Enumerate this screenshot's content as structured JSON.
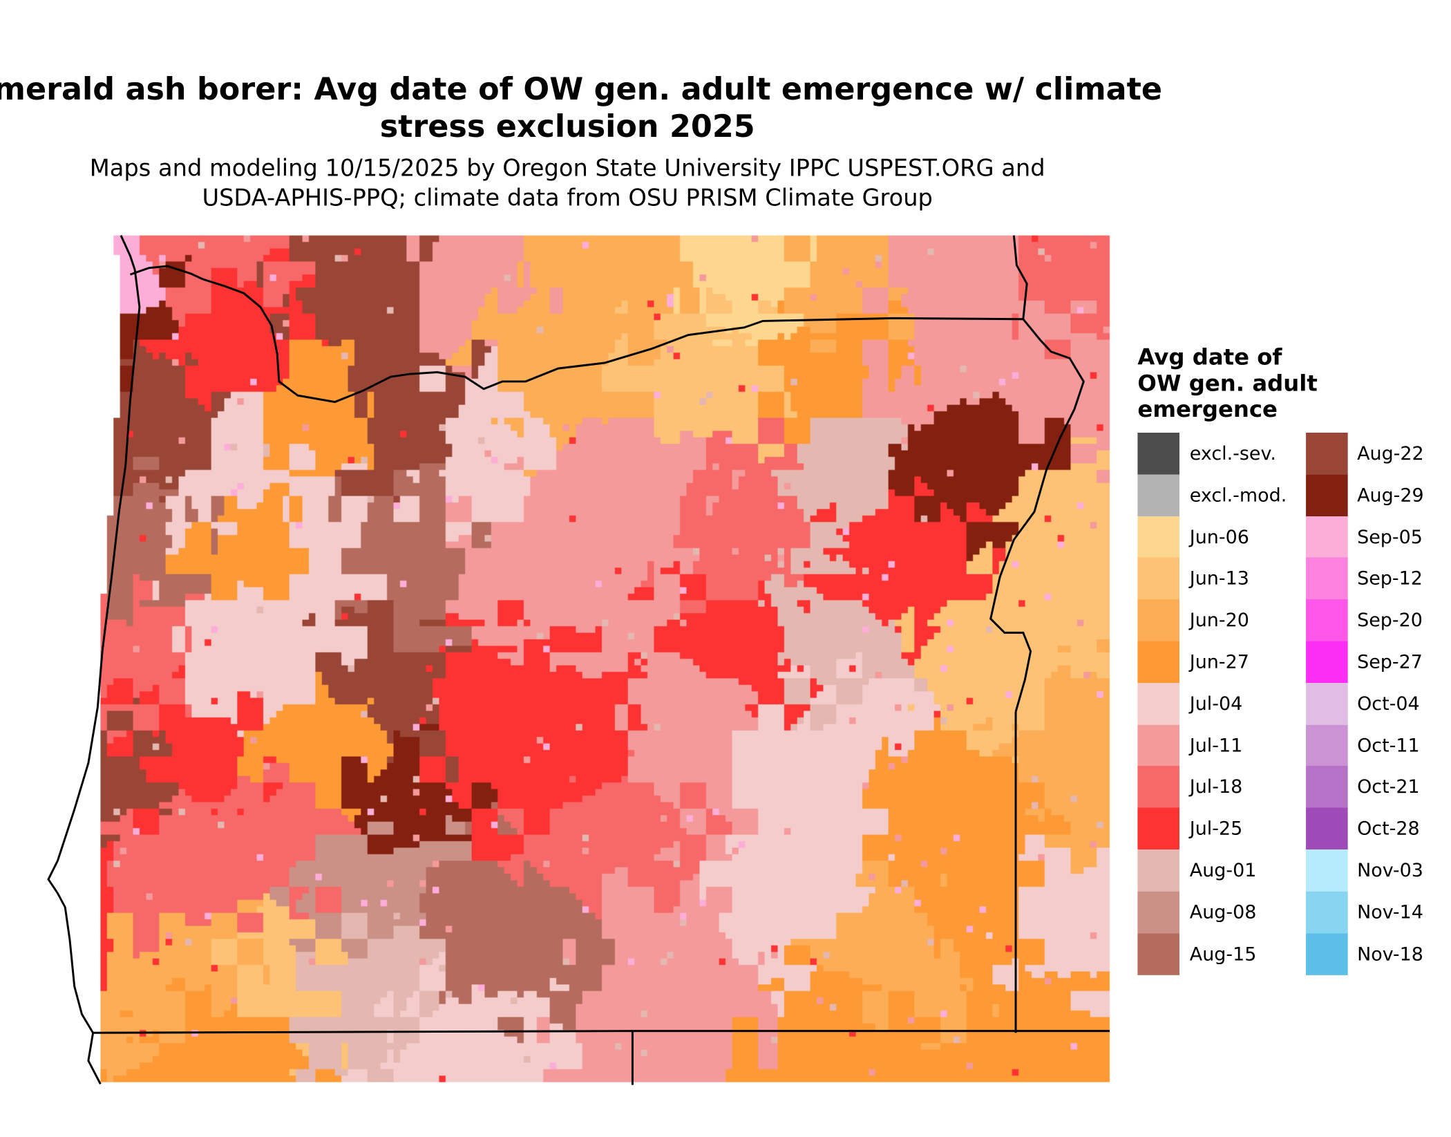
{
  "title": {
    "line1": "Emerald ash borer: Avg date of OW gen. adult emergence w/ climate",
    "line2": "stress exclusion 2025"
  },
  "subtitle": {
    "line1": "Maps and modeling 10/15/2025 by Oregon State University IPPC USPEST.ORG and",
    "line2": "USDA-APHIS-PPQ; climate data from OSU PRISM Climate Group"
  },
  "map": {
    "region": "Oregon and surrounding areas",
    "boundaries_color": "#000000",
    "background": "#ffffff"
  },
  "legend": {
    "title_lines": [
      "Avg date of",
      "OW gen. adult",
      "emergence"
    ],
    "items": [
      {
        "label": "excl.-sev.",
        "color": "#4d4d4d"
      },
      {
        "label": "excl.-mod.",
        "color": "#b3b3b3"
      },
      {
        "label": "Jun-06",
        "color": "#fdd78f"
      },
      {
        "label": "Jun-13",
        "color": "#fdc275"
      },
      {
        "label": "Jun-20",
        "color": "#fcad55"
      },
      {
        "label": "Jun-27",
        "color": "#fd9a36"
      },
      {
        "label": "Jul-04",
        "color": "#f5cccc"
      },
      {
        "label": "Jul-11",
        "color": "#f49a9a"
      },
      {
        "label": "Jul-18",
        "color": "#f76868"
      },
      {
        "label": "Jul-25",
        "color": "#fd3333"
      },
      {
        "label": "Aug-01",
        "color": "#e4b7b0"
      },
      {
        "label": "Aug-08",
        "color": "#cb9086"
      },
      {
        "label": "Aug-15",
        "color": "#b56c5e"
      },
      {
        "label": "Aug-22",
        "color": "#9a4637"
      },
      {
        "label": "Aug-29",
        "color": "#84200f"
      },
      {
        "label": "Sep-05",
        "color": "#fdaed8"
      },
      {
        "label": "Sep-12",
        "color": "#fd82df"
      },
      {
        "label": "Sep-20",
        "color": "#fd56e8"
      },
      {
        "label": "Sep-27",
        "color": "#fd2ef4"
      },
      {
        "label": "Oct-04",
        "color": "#e1bde6"
      },
      {
        "label": "Oct-11",
        "color": "#cb93d3"
      },
      {
        "label": "Oct-21",
        "color": "#b672c6"
      },
      {
        "label": "Oct-28",
        "color": "#9e4ab8"
      },
      {
        "label": "Nov-03",
        "color": "#b5ecfd"
      },
      {
        "label": "Nov-14",
        "color": "#87d5f0"
      },
      {
        "label": "Nov-18",
        "color": "#5bbfe7"
      }
    ]
  }
}
